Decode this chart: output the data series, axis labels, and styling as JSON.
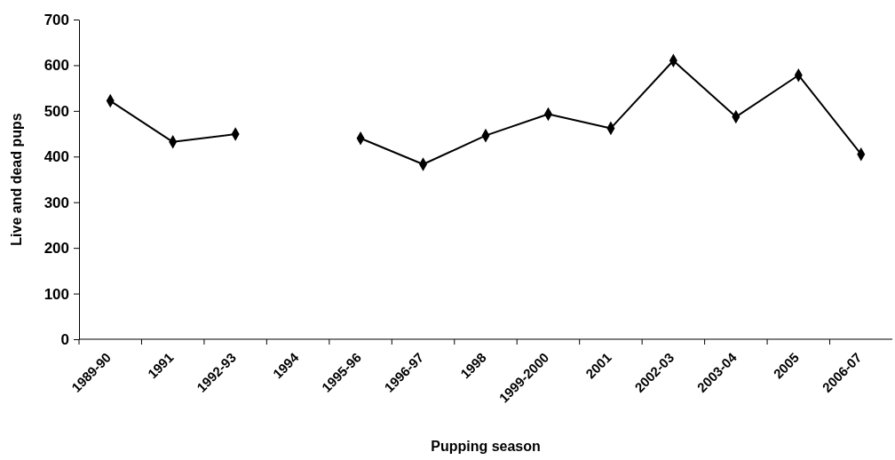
{
  "chart_data": {
    "type": "line",
    "xlabel": "Pupping season",
    "ylabel": "Live and dead pups",
    "categories": [
      "1989-90",
      "1991",
      "1992-93",
      "1994",
      "1995-96",
      "1996-97",
      "1998",
      "1999-2000",
      "2001",
      "2002-03",
      "2003-04",
      "2005",
      "2006-07"
    ],
    "series": [
      {
        "color": "#000000",
        "values": [
          522,
          432,
          449,
          null,
          440,
          383,
          446,
          493,
          462,
          610,
          487,
          578,
          405
        ]
      }
    ],
    "ylim": [
      0,
      700
    ],
    "yticks": [
      0,
      100,
      200,
      300,
      400,
      500,
      600,
      700
    ],
    "grid": false,
    "marker": "diamond",
    "line_style": "solid"
  }
}
